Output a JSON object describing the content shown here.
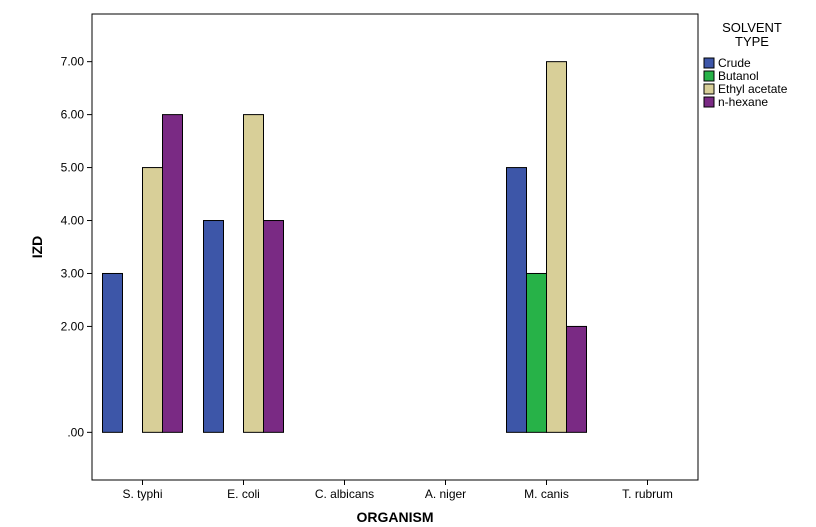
{
  "chart_data": {
    "type": "bar",
    "xlabel": "ORGANISM",
    "ylabel": "IZD",
    "categories": [
      "S. typhi",
      "E. coli",
      "C. albicans",
      "A. niger",
      "M. canis",
      "T. rubrum"
    ],
    "yticks": [
      ".00",
      "2.00",
      "3.00",
      "4.00",
      "5.00",
      "6.00",
      "7.00"
    ],
    "ylim": [
      -0.9,
      7.9
    ],
    "grid": false,
    "legend_title_lines": [
      "SOLVENT",
      "TYPE"
    ],
    "legend_position": "top-right",
    "series": [
      {
        "name": "Crude",
        "color": "#3d56a8",
        "values": [
          3,
          4,
          0,
          0,
          5,
          0
        ]
      },
      {
        "name": "Butanol",
        "color": "#27b248",
        "values": [
          0,
          0,
          0,
          0,
          3,
          0
        ]
      },
      {
        "name": "Ethyl acetate",
        "color": "#d8cf98",
        "values": [
          5,
          6,
          0,
          0,
          7,
          0
        ]
      },
      {
        "name": "n-hexane",
        "color": "#7a2a84",
        "values": [
          6,
          4,
          0,
          0,
          2,
          0
        ]
      }
    ]
  }
}
